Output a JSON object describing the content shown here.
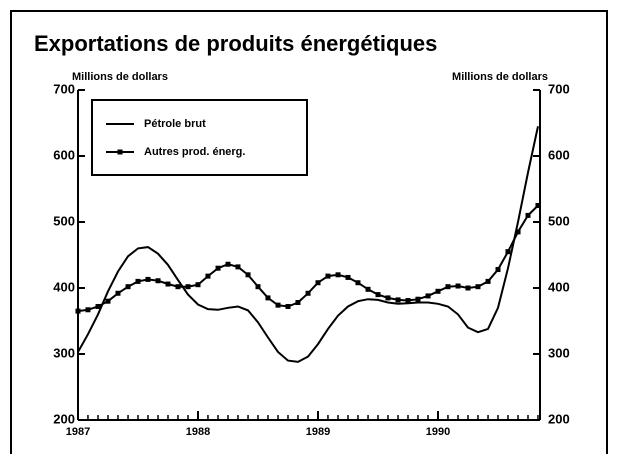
{
  "chart_data": {
    "type": "line",
    "title": "Exportations de produits énergétiques",
    "y_label": "Millions de dollars",
    "y2_label": "Millions de dollars",
    "x": [
      1987,
      1987.083,
      1987.167,
      1987.25,
      1987.333,
      1987.417,
      1987.5,
      1987.583,
      1987.667,
      1987.75,
      1987.833,
      1987.917,
      1988,
      1988.083,
      1988.167,
      1988.25,
      1988.333,
      1988.417,
      1988.5,
      1988.583,
      1988.667,
      1988.75,
      1988.833,
      1988.917,
      1989,
      1989.083,
      1989.167,
      1989.25,
      1989.333,
      1989.417,
      1989.5,
      1989.583,
      1989.667,
      1989.75,
      1989.833,
      1989.917,
      1990,
      1990.083,
      1990.167,
      1990.25,
      1990.333,
      1990.417,
      1990.5,
      1990.583,
      1990.667,
      1990.75,
      1990.833
    ],
    "series": [
      {
        "name": "Pétrole brut",
        "color": "#000000",
        "marker": "none",
        "values": [
          303,
          330,
          360,
          395,
          425,
          448,
          460,
          462,
          452,
          435,
          412,
          390,
          375,
          368,
          367,
          370,
          372,
          366,
          348,
          325,
          303,
          290,
          288,
          296,
          315,
          338,
          358,
          372,
          380,
          383,
          382,
          378,
          376,
          377,
          378,
          378,
          376,
          372,
          360,
          340,
          333,
          338,
          370,
          430,
          500,
          575,
          645
        ]
      },
      {
        "name": "Autres prod. énerg.",
        "color": "#000000",
        "marker": "square",
        "values": [
          365,
          367,
          372,
          380,
          392,
          402,
          410,
          413,
          411,
          406,
          402,
          402,
          405,
          418,
          430,
          436,
          432,
          420,
          402,
          385,
          374,
          372,
          378,
          392,
          408,
          418,
          420,
          416,
          408,
          398,
          390,
          385,
          382,
          381,
          383,
          388,
          395,
          402,
          403,
          400,
          402,
          410,
          428,
          455,
          485,
          510,
          525
        ]
      }
    ],
    "xlim": [
      1987,
      1990.85
    ],
    "xticks": [
      1987,
      1988,
      1989,
      1990
    ],
    "ylim": [
      200,
      700
    ],
    "yticks": [
      200,
      300,
      400,
      500,
      600,
      700
    ],
    "y2lim": [
      200,
      700
    ],
    "y2ticks": [
      200,
      300,
      400,
      500,
      600,
      700
    ],
    "legend": "upper left"
  }
}
